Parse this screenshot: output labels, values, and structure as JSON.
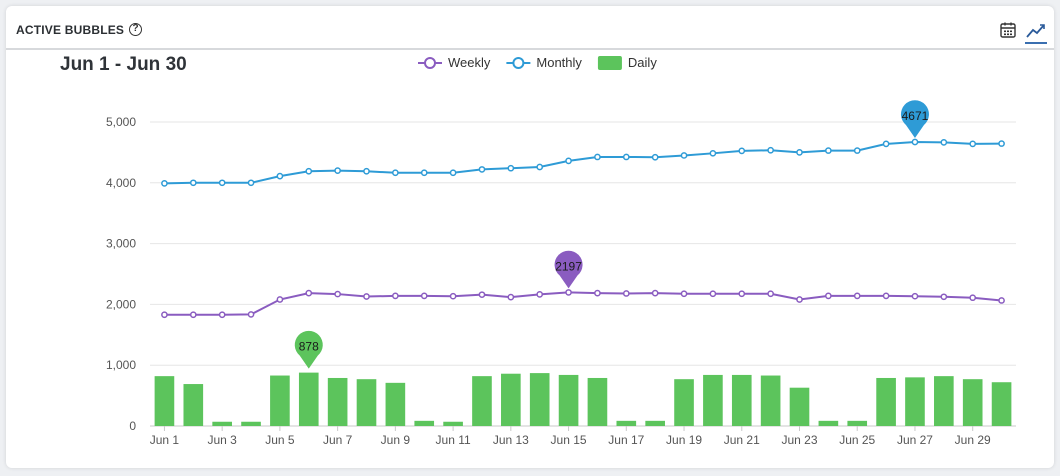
{
  "header": {
    "title": "ACTIVE BUBBLES",
    "help_icon": "question-circle-icon",
    "calendar_icon": "calendar-icon",
    "line_chart_icon": "line-chart-icon"
  },
  "chart_data": {
    "type": "bar",
    "title": "Jun 1 - Jun 30",
    "xlabel": "",
    "ylabel": "",
    "ylim": [
      0,
      5000
    ],
    "yticks": [
      "0",
      "1,000",
      "2,000",
      "3,000",
      "4,000",
      "5,000"
    ],
    "categories": [
      "Jun 1",
      "Jun 2",
      "Jun 3",
      "Jun 4",
      "Jun 5",
      "Jun 6",
      "Jun 7",
      "Jun 8",
      "Jun 9",
      "Jun 10",
      "Jun 11",
      "Jun 12",
      "Jun 13",
      "Jun 14",
      "Jun 15",
      "Jun 16",
      "Jun 17",
      "Jun 18",
      "Jun 19",
      "Jun 20",
      "Jun 21",
      "Jun 22",
      "Jun 23",
      "Jun 24",
      "Jun 25",
      "Jun 26",
      "Jun 27",
      "Jun 28",
      "Jun 29",
      "Jun 30"
    ],
    "x_tick_labels": [
      "Jun 1",
      "",
      "Jun 3",
      "",
      "Jun 5",
      "",
      "Jun 7",
      "",
      "Jun 9",
      "",
      "Jun 11",
      "",
      "Jun 13",
      "",
      "Jun 15",
      "",
      "Jun 17",
      "",
      "Jun 19",
      "",
      "Jun 21",
      "",
      "Jun 23",
      "",
      "Jun 25",
      "",
      "Jun 27",
      "",
      "Jun 29",
      ""
    ],
    "legend_position": "top-center",
    "grid": true,
    "series": [
      {
        "name": "Weekly",
        "type": "line",
        "color": "#8a5cc0",
        "values": [
          1830,
          1830,
          1830,
          1835,
          2080,
          2185,
          2170,
          2130,
          2140,
          2140,
          2135,
          2160,
          2120,
          2165,
          2197,
          2185,
          2180,
          2185,
          2175,
          2175,
          2175,
          2175,
          2080,
          2140,
          2140,
          2140,
          2135,
          2125,
          2110,
          2065
        ]
      },
      {
        "name": "Monthly",
        "type": "line",
        "color": "#2e9bd6",
        "values": [
          3990,
          4000,
          4000,
          4000,
          4110,
          4190,
          4200,
          4190,
          4165,
          4165,
          4165,
          4220,
          4240,
          4260,
          4360,
          4425,
          4425,
          4420,
          4450,
          4485,
          4525,
          4535,
          4500,
          4530,
          4530,
          4640,
          4671,
          4665,
          4640,
          4645
        ]
      },
      {
        "name": "Daily",
        "type": "bar",
        "color": "#5cc45c",
        "values": [
          820,
          690,
          70,
          70,
          830,
          878,
          790,
          770,
          710,
          85,
          70,
          820,
          860,
          870,
          840,
          790,
          85,
          85,
          770,
          840,
          840,
          830,
          630,
          85,
          85,
          790,
          800,
          820,
          770,
          720
        ]
      }
    ],
    "annotations": [
      {
        "series": "Daily",
        "index": 5,
        "label": "878"
      },
      {
        "series": "Weekly",
        "index": 14,
        "label": "2197"
      },
      {
        "series": "Monthly",
        "index": 26,
        "label": "4671"
      }
    ]
  }
}
